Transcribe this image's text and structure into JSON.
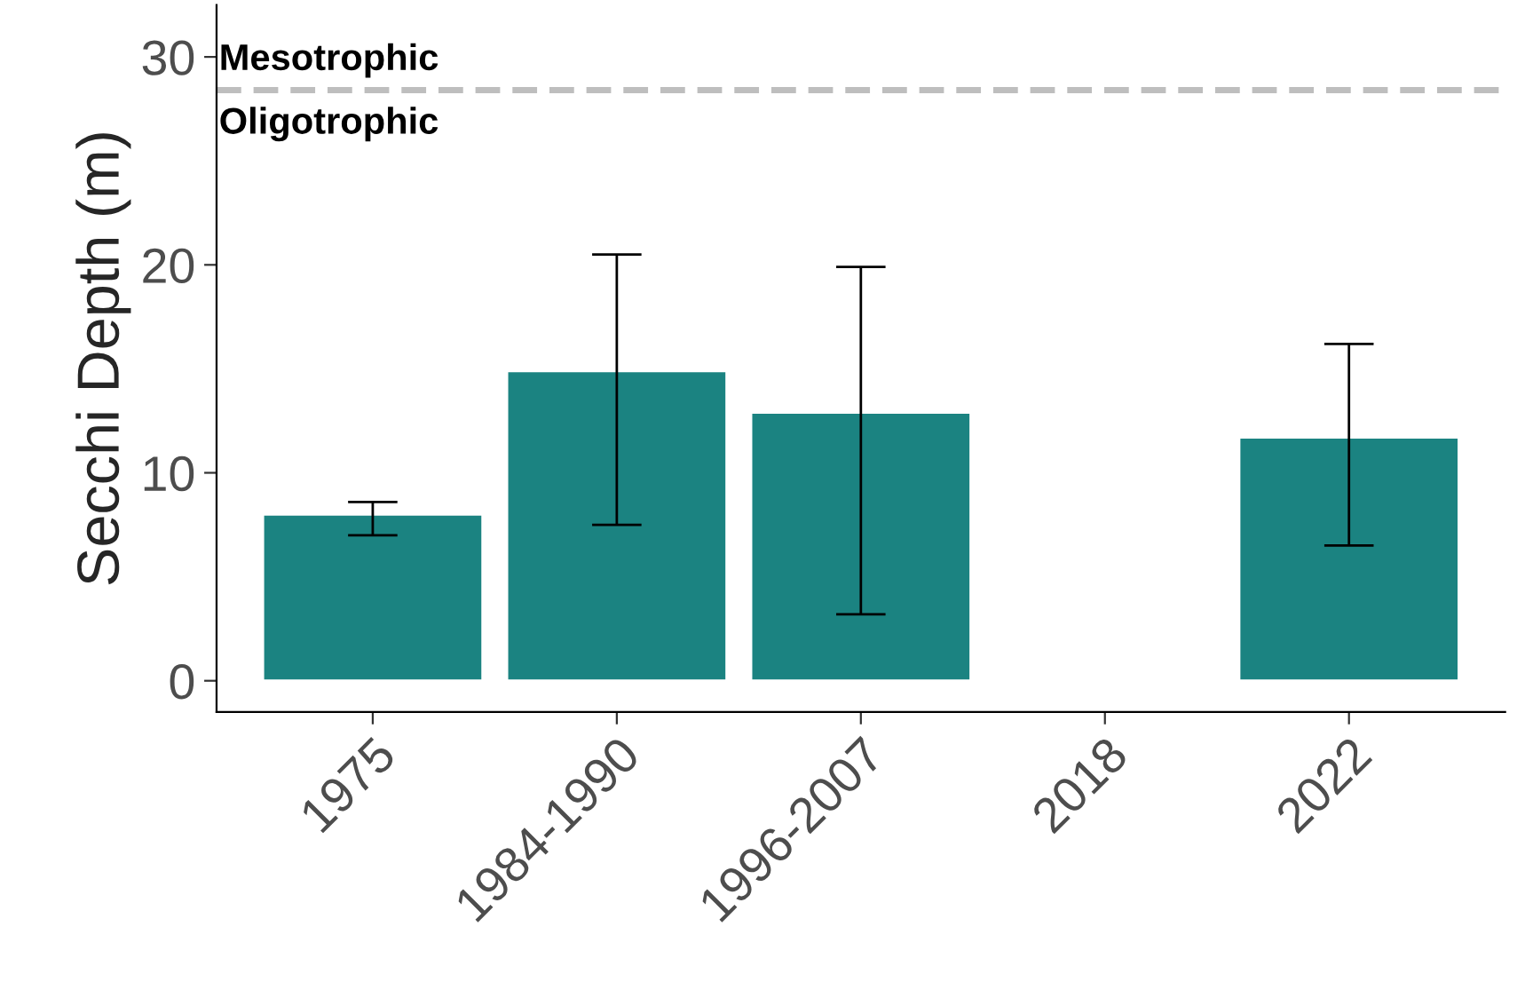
{
  "chart_data": {
    "type": "bar",
    "ylabel": "Secchi Depth (m)",
    "categories": [
      "1975",
      "1984-1990",
      "1996-2007",
      "2018",
      "2022"
    ],
    "values": [
      8.0,
      14.9,
      12.9,
      null,
      11.7
    ],
    "errors": [
      [
        7.0,
        8.6
      ],
      [
        7.5,
        20.5
      ],
      [
        3.2,
        19.9
      ],
      null,
      [
        6.5,
        16.2
      ]
    ],
    "color": "#1b8381",
    "ylim": [
      -1.5,
      32.5
    ],
    "yticks": [
      0,
      10,
      20,
      30
    ],
    "grid": false,
    "ref_lines": [
      {
        "axis": "y",
        "value": 28.4,
        "color": "#bebebe",
        "line_style": "dashed"
      }
    ],
    "annotations": [
      "Mesotrophic",
      "Oligotrophic"
    ]
  }
}
